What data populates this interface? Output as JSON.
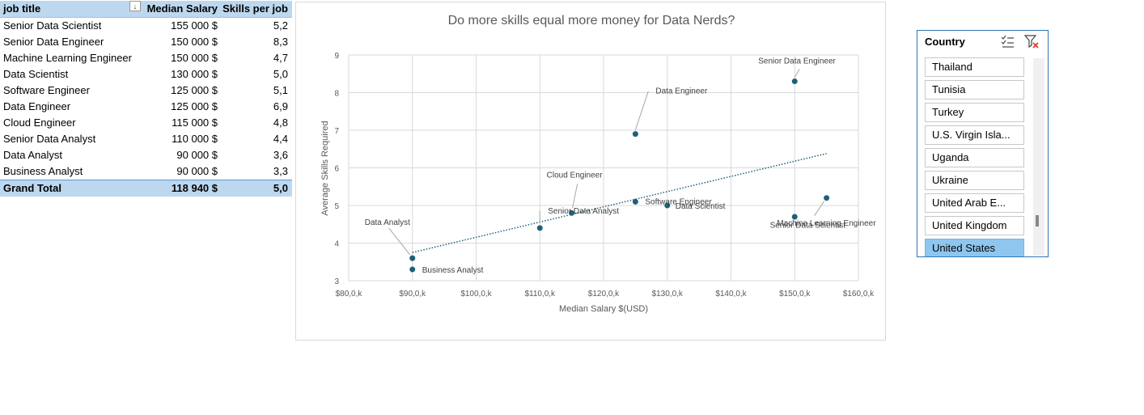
{
  "pivot": {
    "headers": [
      "job title",
      "Median Salary",
      "Skills per job"
    ],
    "filter_icon": "sort-filter-dropdown-icon",
    "rows": [
      [
        "Senior Data Scientist",
        "155 000 $",
        "5,2"
      ],
      [
        "Senior Data Engineer",
        "150 000 $",
        "8,3"
      ],
      [
        "Machine Learning Engineer",
        "150 000 $",
        "4,7"
      ],
      [
        "Data Scientist",
        "130 000 $",
        "5,0"
      ],
      [
        "Software Engineer",
        "125 000 $",
        "5,1"
      ],
      [
        "Data Engineer",
        "125 000 $",
        "6,9"
      ],
      [
        "Cloud Engineer",
        "115 000 $",
        "4,8"
      ],
      [
        "Senior Data Analyst",
        "110 000 $",
        "4,4"
      ],
      [
        "Data Analyst",
        "90 000 $",
        "3,6"
      ],
      [
        "Business Analyst",
        "90 000 $",
        "3,3"
      ]
    ],
    "total": [
      "Grand Total",
      "118 940 $",
      "5,0"
    ]
  },
  "chart_data": {
    "type": "scatter",
    "title": "Do more skills equal more money for Data Nerds?",
    "xlabel": "Median Salary $(USD)",
    "ylabel": "Average Skills Required",
    "xlim": [
      80000,
      160000
    ],
    "ylim": [
      3,
      9
    ],
    "x_ticks": [
      80000,
      90000,
      100000,
      110000,
      120000,
      130000,
      140000,
      150000,
      160000
    ],
    "x_tick_labels": [
      "$80,0,k",
      "$90,0,k",
      "$100,0,k",
      "$110,0,k",
      "$120,0,k",
      "$130,0,k",
      "$140,0,k",
      "$150,0,k",
      "$160,0,k"
    ],
    "y_ticks": [
      3,
      4,
      5,
      6,
      7,
      8,
      9
    ],
    "y_tick_labels": [
      "3",
      "4",
      "5",
      "6",
      "7",
      "8",
      "9"
    ],
    "grid": true,
    "trendline": {
      "style": "dotted",
      "x_range": [
        90000,
        155000
      ],
      "y_start": 3.75,
      "y_end": 6.38
    },
    "marker_color": "#1f5f7a",
    "points": [
      {
        "x": 155000,
        "y": 5.2,
        "label": "Senior Data Scientist"
      },
      {
        "x": 150000,
        "y": 8.3,
        "label": "Senior Data Engineer"
      },
      {
        "x": 150000,
        "y": 4.7,
        "label": "Machine Learning Engineer"
      },
      {
        "x": 130000,
        "y": 5.0,
        "label": "Data Scientist"
      },
      {
        "x": 125000,
        "y": 5.1,
        "label": "Software Engineer"
      },
      {
        "x": 125000,
        "y": 6.9,
        "label": "Data Engineer"
      },
      {
        "x": 115000,
        "y": 4.8,
        "label": "Cloud Engineer"
      },
      {
        "x": 110000,
        "y": 4.4,
        "label": "Senior Data Analyst"
      },
      {
        "x": 90000,
        "y": 3.6,
        "label": "Data Analyst"
      },
      {
        "x": 90000,
        "y": 3.3,
        "label": "Business Analyst"
      }
    ]
  },
  "slicer": {
    "title": "Country",
    "multi_select_icon": "multi-select-icon",
    "clear_filter_icon": "clear-filter-icon",
    "items": [
      "Thailand",
      "Tunisia",
      "Turkey",
      "U.S. Virgin Isla...",
      "Uganda",
      "Ukraine",
      "United Arab E...",
      "United Kingdom",
      "United States"
    ],
    "selected": "United States",
    "selected_color": "#8ec6f0"
  }
}
